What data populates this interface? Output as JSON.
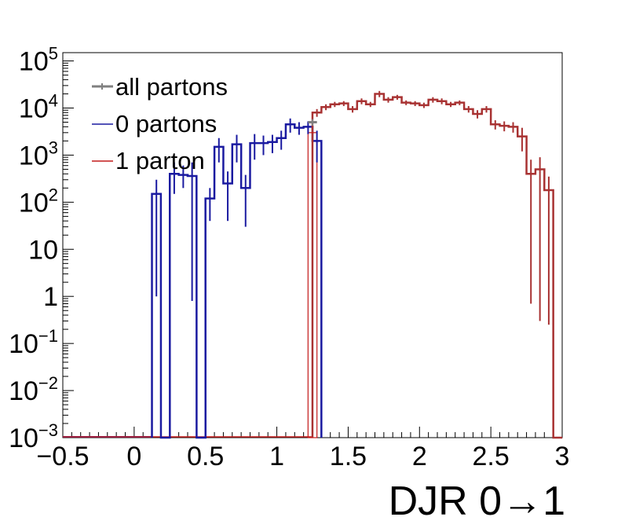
{
  "chart_data": {
    "type": "histogram",
    "xlabel": "DJR 0→1",
    "ylabel": "",
    "xlim": [
      -0.5,
      3.0
    ],
    "ylim": [
      0.001,
      150000
    ],
    "yscale": "log",
    "bin_width": 0.0625,
    "x_ticks": [
      "−0.5",
      "0",
      "0.5",
      "1",
      "1.5",
      "2",
      "2.5",
      "3"
    ],
    "x_tick_values": [
      -0.5,
      0,
      0.5,
      1,
      1.5,
      2,
      2.5,
      3
    ],
    "y_ticks": [
      {
        "value": 0.001,
        "base": "10",
        "exp": "−3"
      },
      {
        "value": 0.01,
        "base": "10",
        "exp": "−2"
      },
      {
        "value": 0.1,
        "base": "10",
        "exp": "−1"
      },
      {
        "value": 1,
        "base": "1",
        "exp": ""
      },
      {
        "value": 10,
        "base": "10",
        "exp": ""
      },
      {
        "value": 100,
        "base": "10",
        "exp": "2"
      },
      {
        "value": 1000,
        "base": "10",
        "exp": "3"
      },
      {
        "value": 10000,
        "base": "10",
        "exp": "4"
      },
      {
        "value": 100000,
        "base": "10",
        "exp": "5"
      }
    ],
    "legend_position": "top-left",
    "series": [
      {
        "name": "all partons",
        "color": "#808080",
        "bin_centers": [
          1.25
        ],
        "values": [
          5000
        ],
        "errors": [
          [
            4200,
            5800
          ]
        ]
      },
      {
        "name": "0 partons",
        "color": "#1a1aa0",
        "bin_centers": [
          0.156,
          0.219,
          0.281,
          0.344,
          0.406,
          0.469,
          0.531,
          0.594,
          0.656,
          0.719,
          0.781,
          0.844,
          0.906,
          0.969,
          1.031,
          1.094,
          1.156,
          1.219,
          1.281
        ],
        "values": [
          150,
          0.001,
          400,
          380,
          360,
          0.001,
          120,
          1500,
          250,
          1700,
          200,
          1800,
          1800,
          1900,
          2300,
          4500,
          3800,
          4000,
          2000
        ],
        "errors": [
          [
            1,
            300
          ],
          null,
          [
            150,
            700
          ],
          [
            200,
            600
          ],
          [
            0.8,
            700
          ],
          null,
          [
            40,
            200
          ],
          [
            700,
            2300
          ],
          [
            40,
            450
          ],
          [
            700,
            2700
          ],
          [
            30,
            380
          ],
          [
            800,
            2800
          ],
          [
            1000,
            2600
          ],
          [
            1100,
            2700
          ],
          [
            1300,
            3300
          ],
          [
            3000,
            6000
          ],
          [
            2700,
            5000
          ],
          [
            2800,
            5200
          ],
          [
            700,
            3300
          ]
        ]
      },
      {
        "name": "1 parton",
        "color": "#c41a1a",
        "bin_centers": [
          1.281,
          1.344,
          1.406,
          1.469,
          1.531,
          1.594,
          1.656,
          1.719,
          1.781,
          1.844,
          1.906,
          1.969,
          2.031,
          2.094,
          2.156,
          2.219,
          2.281,
          2.344,
          2.406,
          2.469,
          2.531,
          2.594,
          2.656,
          2.719,
          2.781,
          2.844,
          2.906,
          2.969
        ],
        "values": [
          8000,
          10500,
          12000,
          12500,
          9500,
          14000,
          12000,
          20000,
          15000,
          17000,
          13000,
          12500,
          11500,
          15000,
          14000,
          12000,
          13000,
          9500,
          7500,
          9500,
          4500,
          4200,
          4000,
          2500,
          400,
          500,
          180,
          0.001
        ],
        "errors": [
          [
            6500,
            9500
          ],
          [
            9000,
            12000
          ],
          [
            10500,
            13500
          ],
          [
            11000,
            14000
          ],
          [
            8000,
            11000
          ],
          [
            12000,
            16000
          ],
          [
            10500,
            13500
          ],
          [
            17000,
            23000
          ],
          [
            13000,
            17000
          ],
          [
            15000,
            19000
          ],
          [
            11500,
            14500
          ],
          [
            11000,
            14000
          ],
          [
            10000,
            13000
          ],
          [
            13000,
            17000
          ],
          [
            12000,
            16000
          ],
          [
            10500,
            13500
          ],
          [
            11500,
            14500
          ],
          [
            8000,
            11000
          ],
          [
            6000,
            9000
          ],
          [
            8000,
            11000
          ],
          [
            3500,
            5500
          ],
          [
            3200,
            5200
          ],
          [
            3000,
            5000
          ],
          [
            1200,
            3800
          ],
          [
            0.7,
            800
          ],
          [
            0.3,
            900
          ],
          [
            0.25,
            350
          ],
          null
        ]
      }
    ]
  }
}
